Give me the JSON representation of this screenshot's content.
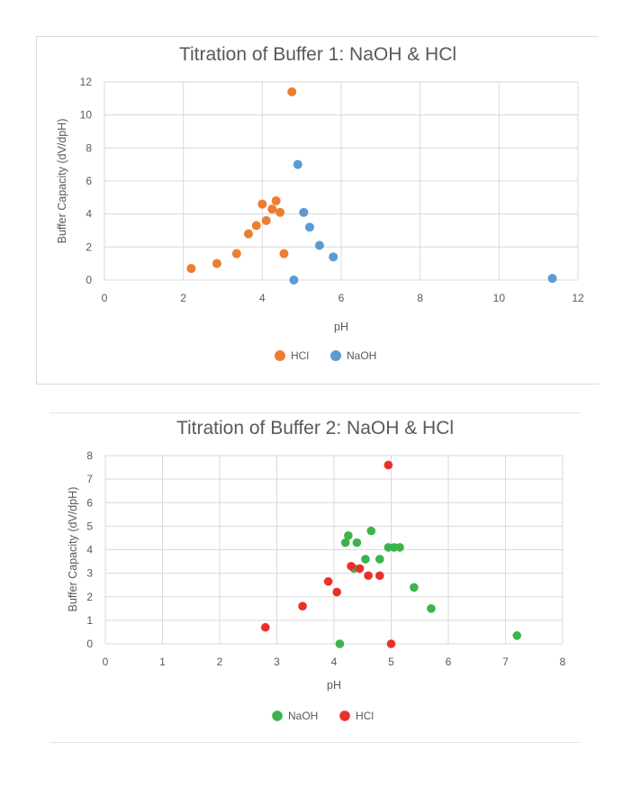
{
  "chart_data": [
    {
      "type": "scatter",
      "title": "Titration of Buffer 1: NaOH & HCl",
      "xlabel": "pH",
      "ylabel": "Buffer Capacity (dV/dpH)",
      "xlim": [
        0,
        12
      ],
      "ylim": [
        0,
        12
      ],
      "xticks": [
        0,
        2,
        4,
        6,
        8,
        10,
        12
      ],
      "yticks": [
        0,
        2,
        4,
        6,
        8,
        10,
        12
      ],
      "grid": true,
      "legend_position": "bottom",
      "series": [
        {
          "name": "HCl",
          "color": "#ED7D31",
          "points": [
            [
              2.2,
              0.7
            ],
            [
              2.85,
              1.0
            ],
            [
              3.35,
              1.6
            ],
            [
              3.65,
              2.8
            ],
            [
              3.85,
              3.3
            ],
            [
              4.0,
              4.6
            ],
            [
              4.1,
              3.6
            ],
            [
              4.25,
              4.3
            ],
            [
              4.35,
              4.8
            ],
            [
              4.45,
              4.1
            ],
            [
              4.55,
              1.6
            ],
            [
              4.75,
              11.4
            ]
          ]
        },
        {
          "name": "NaOH",
          "color": "#5B9BD5",
          "points": [
            [
              4.8,
              0.0
            ],
            [
              4.9,
              7.0
            ],
            [
              5.05,
              4.1
            ],
            [
              5.2,
              3.2
            ],
            [
              5.45,
              2.1
            ],
            [
              5.8,
              1.4
            ],
            [
              11.35,
              0.1
            ]
          ]
        }
      ]
    },
    {
      "type": "scatter",
      "title": "Titration of Buffer 2: NaOH & HCl",
      "xlabel": "pH",
      "ylabel": "Buffer Capacity (dV/dpH)",
      "xlim": [
        0,
        8
      ],
      "ylim": [
        0,
        8
      ],
      "xticks": [
        0,
        1,
        2,
        3,
        4,
        5,
        6,
        7,
        8
      ],
      "yticks": [
        0,
        1,
        2,
        3,
        4,
        5,
        6,
        7,
        8
      ],
      "grid": true,
      "legend_position": "bottom",
      "series": [
        {
          "name": "NaOH",
          "color": "#3CB44B",
          "points": [
            [
              4.1,
              0.0
            ],
            [
              4.2,
              4.3
            ],
            [
              4.25,
              4.6
            ],
            [
              4.35,
              3.2
            ],
            [
              4.4,
              4.3
            ],
            [
              4.55,
              3.6
            ],
            [
              4.65,
              4.8
            ],
            [
              4.8,
              3.6
            ],
            [
              4.95,
              4.1
            ],
            [
              5.05,
              4.1
            ],
            [
              5.15,
              4.1
            ],
            [
              5.4,
              2.4
            ],
            [
              5.7,
              1.5
            ],
            [
              7.2,
              0.35
            ]
          ]
        },
        {
          "name": "HCl",
          "color": "#E8302B",
          "points": [
            [
              2.8,
              0.7
            ],
            [
              3.45,
              1.6
            ],
            [
              3.9,
              2.65
            ],
            [
              4.05,
              2.2
            ],
            [
              4.3,
              3.3
            ],
            [
              4.45,
              3.2
            ],
            [
              4.6,
              2.9
            ],
            [
              4.8,
              2.9
            ],
            [
              4.95,
              7.6
            ],
            [
              5.0,
              0.0
            ]
          ]
        }
      ]
    }
  ]
}
